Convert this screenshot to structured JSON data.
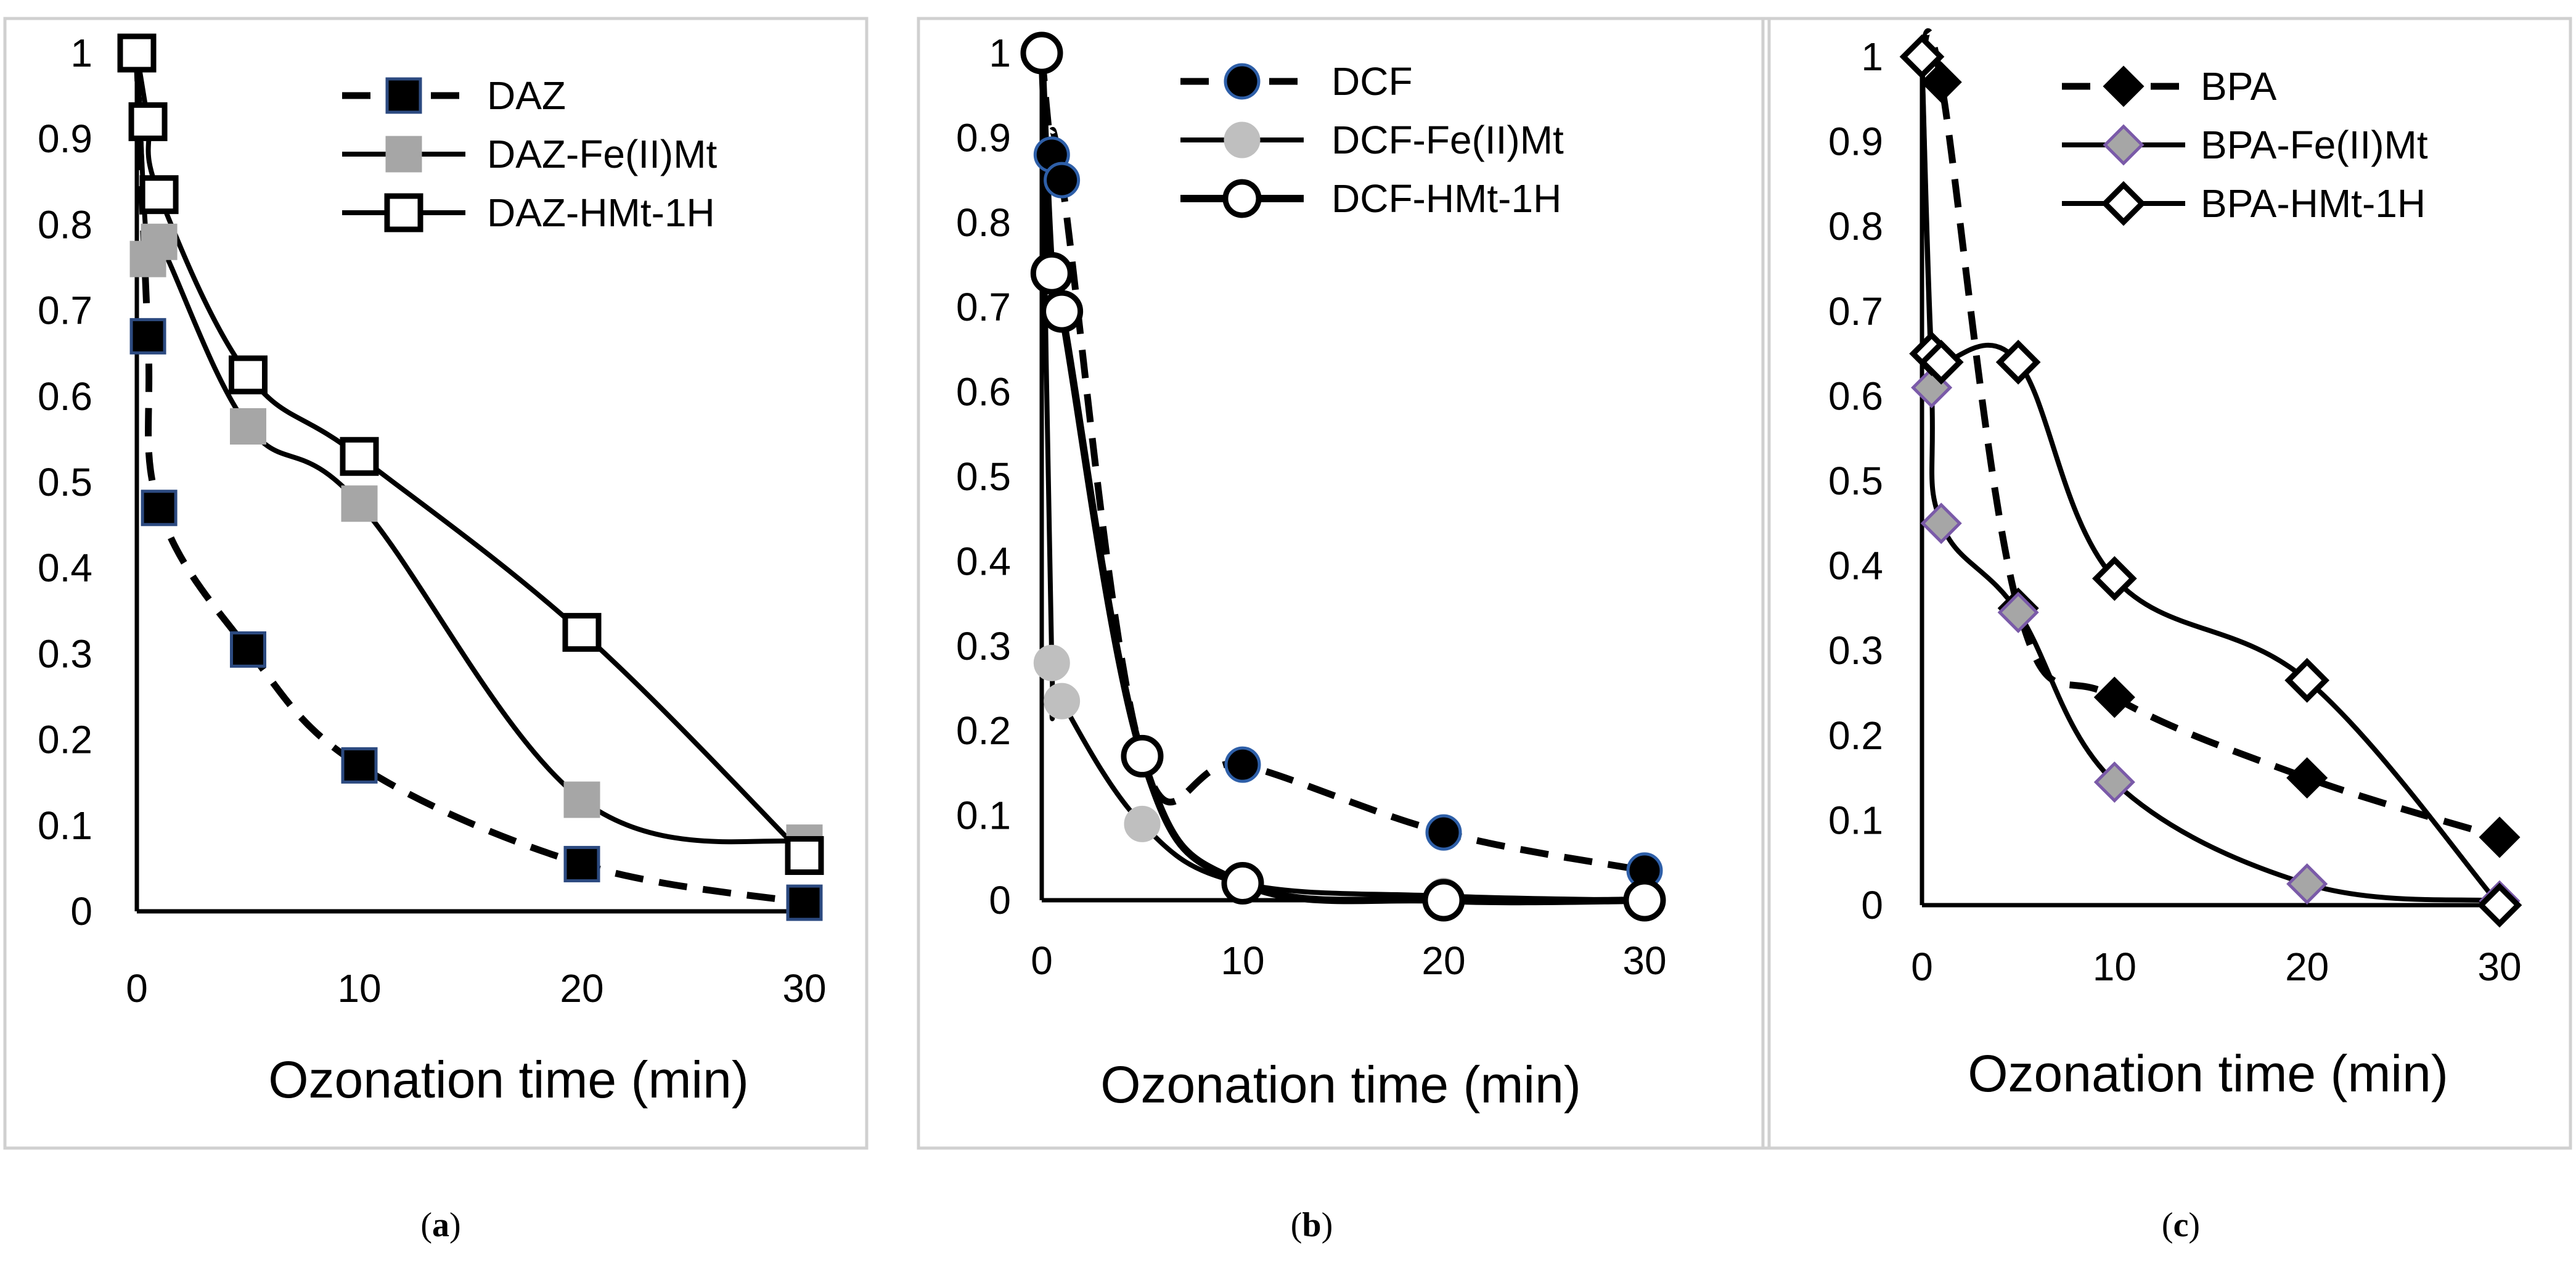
{
  "chart_data": [
    {
      "type": "line",
      "panel": "a",
      "caption_letter": "a",
      "title": "",
      "xlabel": "Ozonation time (min)",
      "ylabel": "",
      "xlim": [
        0,
        30
      ],
      "ylim": [
        0,
        1
      ],
      "xticks": [
        "0",
        "10",
        "20",
        "30"
      ],
      "yticks": [
        "0",
        "0.1",
        "0.2",
        "0.3",
        "0.4",
        "0.5",
        "0.6",
        "0.7",
        "0.8",
        "0.9",
        "1"
      ],
      "grid": false,
      "legend_position": "top-right",
      "series": [
        {
          "name": "DAZ",
          "x": [
            0,
            0.5,
            1,
            5,
            10,
            20,
            30
          ],
          "values": [
            1,
            0.67,
            0.47,
            0.305,
            0.17,
            0.055,
            0.01
          ],
          "line": "dashed",
          "marker": "square",
          "marker_fill": "#000000",
          "marker_stroke": "#2c4a80"
        },
        {
          "name": "DAZ-Fe(II)Mt",
          "x": [
            0,
            0.5,
            1,
            5,
            10,
            20,
            30
          ],
          "values": [
            1,
            0.76,
            0.78,
            0.565,
            0.475,
            0.13,
            0.08
          ],
          "line": "solid",
          "marker": "square",
          "marker_fill": "#a6a6a6",
          "marker_stroke": "#a6a6a6"
        },
        {
          "name": "DAZ-HMt-1H",
          "x": [
            0,
            0.5,
            1,
            5,
            10,
            20,
            30
          ],
          "values": [
            1,
            0.92,
            0.835,
            0.625,
            0.53,
            0.325,
            0.065
          ],
          "line": "solid",
          "marker": "square",
          "marker_fill": "none",
          "marker_stroke": "#000000"
        }
      ]
    },
    {
      "type": "line",
      "panel": "b",
      "caption_letter": "b",
      "title": "",
      "xlabel": "Ozonation time (min)",
      "ylabel": "",
      "xlim": [
        0,
        30
      ],
      "ylim": [
        0,
        1
      ],
      "xticks": [
        "0",
        "10",
        "20",
        "30"
      ],
      "yticks": [
        "0",
        "0.1",
        "0.2",
        "0.3",
        "0.4",
        "0.5",
        "0.6",
        "0.7",
        "0.8",
        "0.9",
        "1"
      ],
      "grid": false,
      "legend_position": "top-right",
      "series": [
        {
          "name": "DCF",
          "x": [
            0,
            0.5,
            1,
            5,
            10,
            20,
            30
          ],
          "values": [
            1,
            0.88,
            0.85,
            0.17,
            0.16,
            0.08,
            0.035
          ],
          "line": "dashed",
          "marker": "circle",
          "marker_fill": "#000000",
          "marker_stroke": "#2e5fa8"
        },
        {
          "name": "DCF-Fe(II)Mt",
          "x": [
            0,
            0.5,
            1,
            5,
            10,
            20,
            30
          ],
          "values": [
            1,
            0.28,
            0.235,
            0.09,
            0.02,
            0.005,
            0
          ],
          "line": "solid",
          "marker": "circle",
          "marker_fill": "#bfbfbf",
          "marker_stroke": "#bfbfbf"
        },
        {
          "name": "DCF-HMt-1H",
          "x": [
            0,
            0.5,
            1,
            5,
            10,
            20,
            30
          ],
          "values": [
            1,
            0.74,
            0.695,
            0.17,
            0.02,
            0.0,
            0.0
          ],
          "line": "solid-thick",
          "marker": "circle",
          "marker_fill": "none",
          "marker_stroke": "#000000"
        }
      ]
    },
    {
      "type": "line",
      "panel": "c",
      "caption_letter": "c",
      "title": "",
      "xlabel": "Ozonation time (min)",
      "ylabel": "",
      "xlim": [
        0,
        30
      ],
      "ylim": [
        0,
        1
      ],
      "xticks": [
        "0",
        "10",
        "20",
        "30"
      ],
      "yticks": [
        "0",
        "0.1",
        "0.2",
        "0.3",
        "0.4",
        "0.5",
        "0.6",
        "0.7",
        "0.8",
        "0.9",
        "1"
      ],
      "grid": false,
      "legend_position": "top-right",
      "series": [
        {
          "name": "BPA",
          "x": [
            0,
            1,
            5,
            10,
            20,
            30
          ],
          "values": [
            1,
            0.97,
            0.35,
            0.245,
            0.15,
            0.08
          ],
          "line": "dashed",
          "marker": "diamond",
          "marker_fill": "#000000",
          "marker_stroke": "#000000"
        },
        {
          "name": "BPA-Fe(II)Mt",
          "x": [
            0,
            0.5,
            1,
            5,
            10,
            20,
            30
          ],
          "values": [
            1,
            0.61,
            0.45,
            0.345,
            0.145,
            0.025,
            0.005
          ],
          "line": "solid",
          "marker": "diamond",
          "marker_fill": "#a6a6a6",
          "marker_stroke": "#7a5aa8"
        },
        {
          "name": "BPA-HMt-1H",
          "x": [
            0,
            0.5,
            1,
            5,
            10,
            20,
            30
          ],
          "values": [
            1,
            0.65,
            0.64,
            0.64,
            0.385,
            0.265,
            0.0
          ],
          "line": "solid",
          "marker": "diamond",
          "marker_fill": "none",
          "marker_stroke": "#000000"
        }
      ]
    }
  ]
}
